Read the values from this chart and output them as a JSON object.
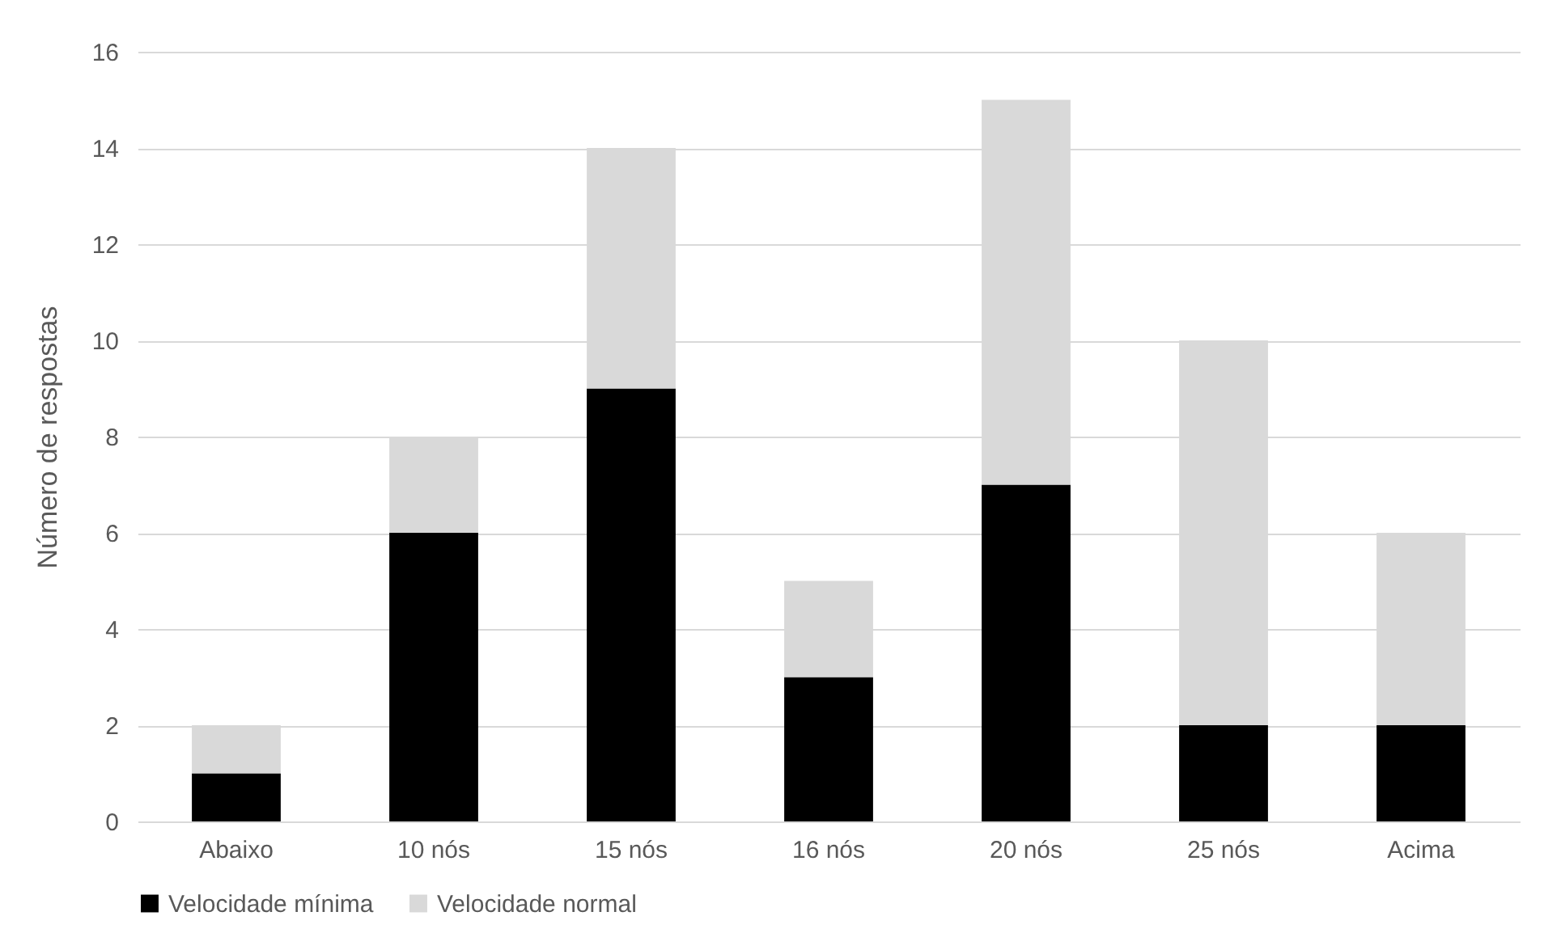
{
  "chart_data": {
    "type": "bar",
    "stacked": true,
    "ylabel": "Número de respostas",
    "categories": [
      "Abaixo",
      "10 nós",
      "15 nós",
      "16 nós",
      "20 nós",
      "25 nós",
      "Acima"
    ],
    "series": [
      {
        "name": "Velocidade mínima",
        "color": "#000000",
        "values": [
          1,
          6,
          9,
          3,
          7,
          2,
          2
        ]
      },
      {
        "name": "Velocidade normal",
        "color": "#d9d9d9",
        "values": [
          1,
          2,
          5,
          2,
          8,
          8,
          4
        ]
      }
    ],
    "ylim": [
      0,
      16
    ],
    "yticks": [
      0,
      2,
      4,
      6,
      8,
      10,
      12,
      14,
      16
    ],
    "grid": "y",
    "legend": "bottom"
  }
}
